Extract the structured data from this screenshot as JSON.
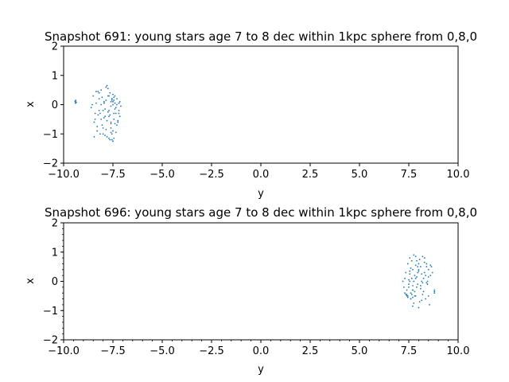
{
  "chart_data": [
    {
      "type": "scatter",
      "title": "Snapshot 691: young stars age 7 to 8 dec within 1kpc sphere from 0,8,0",
      "xlabel": "y",
      "ylabel": "x",
      "xlim": [
        -10,
        10
      ],
      "ylim": [
        -2,
        2
      ],
      "xticks": [
        "−10.0",
        "−7.5",
        "−5.0",
        "−2.5",
        "0.0",
        "2.5",
        "5.0",
        "7.5",
        "10.0"
      ],
      "yticks": [
        "−2",
        "−1",
        "0",
        "1",
        "2"
      ],
      "grid": false,
      "legend": "none",
      "color": "#1f77b4",
      "series": [
        {
          "x": [
            -9.4,
            -9.38,
            -9.42,
            -9.36,
            -9.4,
            -8.6,
            -8.5,
            -8.4,
            -8.35,
            -8.3,
            -8.2,
            -8.15,
            -8.1,
            -8.05,
            -8.0,
            -7.95,
            -7.9,
            -7.85,
            -7.8,
            -7.75,
            -7.7,
            -7.65,
            -7.6,
            -7.55,
            -7.5,
            -7.45,
            -7.4,
            -7.35,
            -7.3,
            -7.25,
            -7.2,
            -7.15,
            -7.1,
            -8.45,
            -8.25,
            -8.05,
            -7.85,
            -7.65,
            -7.5,
            -7.35,
            -7.2,
            -8.35,
            -8.15,
            -7.95,
            -7.75,
            -7.6,
            -7.45,
            -7.3,
            -7.15,
            -8.4,
            -8.2,
            -8.0,
            -7.8,
            -7.7,
            -7.55,
            -7.4,
            -7.25,
            -8.3,
            -8.1,
            -7.9,
            -7.75,
            -7.6,
            -7.45,
            -7.35,
            -7.55,
            -7.5,
            -7.6,
            -7.45,
            -7.65,
            -7.4,
            -7.55,
            -7.5,
            -8.55,
            -8.45,
            -8.25,
            -8.0,
            -7.8,
            -7.6,
            -7.4,
            -7.3,
            -7.2,
            -7.9,
            -7.7,
            -7.5,
            -8.1,
            -7.85,
            -7.6,
            -7.45,
            -8.2,
            -7.95,
            -7.7,
            -7.55
          ],
          "y": [
            0.1,
            0.15,
            0.12,
            0.08,
            0.05,
            -0.1,
            0.3,
            -0.5,
            0.45,
            -0.9,
            0.2,
            -0.3,
            0.5,
            -0.7,
            -1.0,
            0.1,
            -0.4,
            0.6,
            -1.1,
            0.3,
            -0.2,
            0.4,
            -0.8,
            0.2,
            0.0,
            -0.5,
            0.3,
            -0.1,
            0.2,
            -0.6,
            -0.2,
            0.1,
            -0.05,
            -0.6,
            -0.35,
            0.25,
            -0.85,
            -1.2,
            0.35,
            -0.95,
            0.05,
            0.05,
            -1.0,
            -0.45,
            0.55,
            0.1,
            -0.3,
            -0.7,
            -0.4,
            -0.3,
            0.4,
            -0.2,
            -0.55,
            -1.15,
            0.15,
            -0.15,
            -0.55,
            -0.75,
            0.0,
            -1.05,
            -0.25,
            -0.6,
            0.25,
            -0.3,
            0.2,
            0.1,
            -0.05,
            0.15,
            -0.35,
            0.05,
            -1.2,
            -1.25,
            0.0,
            -1.1,
            0.45,
            -0.8,
            0.65,
            -0.95,
            -0.65,
            0.0,
            -0.3,
            -0.15,
            0.3,
            -0.9,
            -0.5,
            0.15,
            -0.65,
            -1.15,
            -0.2,
            0.05,
            -0.4,
            -1.0
          ]
        }
      ]
    },
    {
      "type": "scatter",
      "title": "Snapshot 696: young stars age 7 to 8 dec within 1kpc sphere from 0,8,0",
      "xlabel": "y",
      "ylabel": "x",
      "xlim": [
        -10,
        10
      ],
      "ylim": [
        -2,
        2
      ],
      "xticks": [
        "−10.0",
        "−7.5",
        "−5.0",
        "−2.5",
        "0.0",
        "2.5",
        "5.0",
        "7.5",
        "10.0"
      ],
      "yticks": [
        "−2",
        "−1",
        "0",
        "1",
        "2"
      ],
      "grid": false,
      "legend": "none",
      "color": "#1f77b4",
      "series": [
        {
          "x": [
            7.2,
            7.3,
            7.35,
            7.4,
            7.45,
            7.5,
            7.55,
            7.6,
            7.65,
            7.7,
            7.75,
            7.8,
            7.85,
            7.9,
            7.95,
            8.0,
            8.05,
            8.1,
            8.15,
            8.2,
            8.25,
            8.3,
            8.35,
            8.4,
            8.45,
            8.5,
            8.55,
            8.6,
            8.65,
            8.7,
            8.8,
            8.8,
            8.8,
            7.3,
            7.45,
            7.6,
            7.75,
            7.9,
            8.05,
            8.2,
            8.35,
            8.5,
            7.4,
            7.55,
            7.7,
            7.85,
            8.0,
            8.15,
            8.3,
            8.45,
            7.35,
            7.5,
            7.65,
            7.8,
            7.95,
            8.1,
            8.25,
            8.4,
            7.25,
            7.4,
            7.55,
            7.7,
            7.85,
            8.0,
            8.15,
            7.6,
            7.7,
            7.8,
            7.75,
            7.65,
            7.85,
            7.9,
            8.6,
            8.5,
            8.3,
            7.5,
            7.6,
            7.7,
            8.2,
            8.0,
            7.45,
            7.55,
            7.7,
            7.95,
            8.1,
            8.4
          ],
          "y": [
            0.0,
            -0.4,
            0.3,
            -0.5,
            0.6,
            -0.2,
            0.8,
            -0.6,
            0.1,
            -0.3,
            0.9,
            0.2,
            -0.5,
            0.7,
            -0.1,
            0.4,
            -0.7,
            0.5,
            0.0,
            0.85,
            -0.35,
            0.3,
            -0.6,
            0.6,
            -0.1,
            0.4,
            -0.8,
            0.2,
            0.5,
            0.3,
            -0.3,
            -0.4,
            -0.35,
            0.1,
            -0.55,
            0.45,
            -0.75,
            0.15,
            0.75,
            -0.45,
            0.2,
            -0.5,
            -0.3,
            0.35,
            -0.15,
            0.55,
            -0.9,
            0.25,
            0.65,
            0.0,
            -0.45,
            0.05,
            0.7,
            -0.35,
            0.5,
            -0.25,
            0.1,
            -0.05,
            -0.2,
            -0.45,
            0.25,
            -0.55,
            0.85,
            0.35,
            -0.65,
            -0.4,
            -0.3,
            -0.5,
            0.0,
            -0.45,
            0.1,
            -0.2,
            0.55,
            0.15,
            0.8,
            -0.1,
            -0.6,
            0.4,
            -0.05,
            0.6,
            -0.5,
            0.0,
            -0.85,
            0.3,
            -0.15,
            0.5
          ]
        }
      ]
    }
  ]
}
